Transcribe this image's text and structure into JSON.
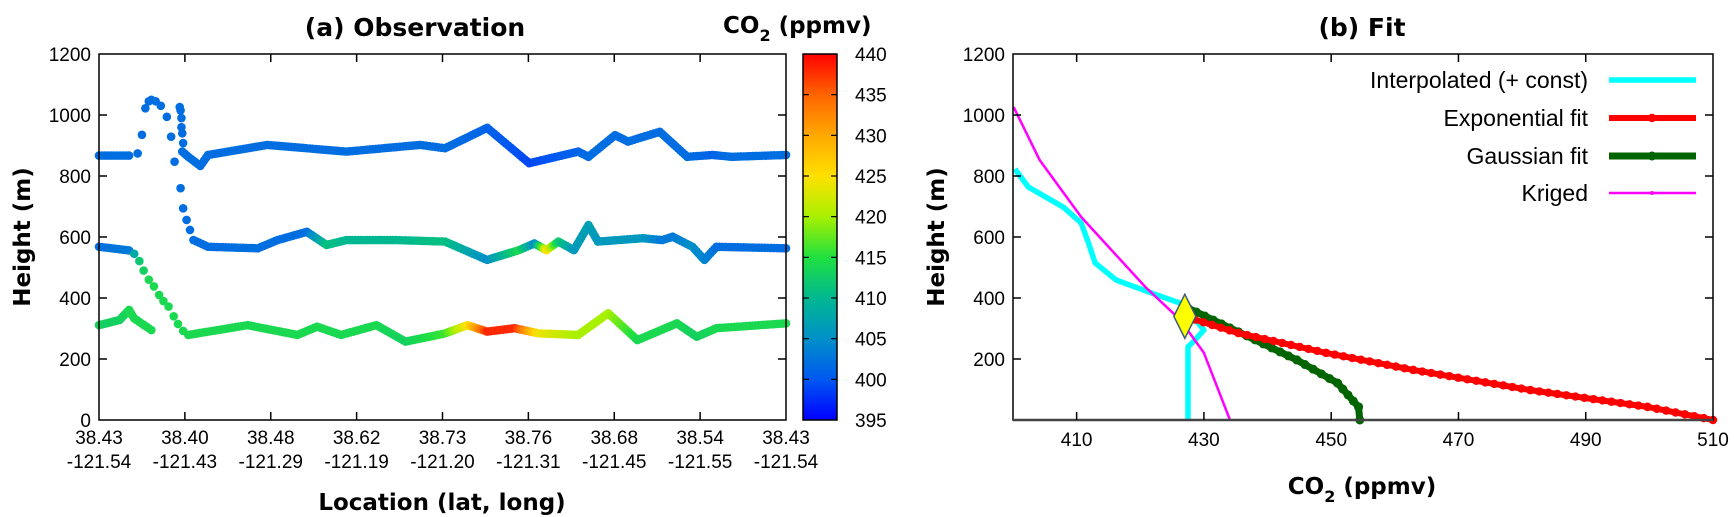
{
  "chart_data": [
    {
      "type": "scatter",
      "title": "(a) Observation",
      "xlabel": "Location (lat, long)",
      "ylabel": "Height (m)",
      "ylim": [
        0,
        1200
      ],
      "yticks": [
        0,
        200,
        400,
        600,
        800,
        1000,
        1200
      ],
      "xlim": [
        0,
        8
      ],
      "xtick_labels": [
        {
          "lat": "38.43",
          "long": "-121.54"
        },
        {
          "lat": "38.40",
          "long": "-121.43"
        },
        {
          "lat": "38.48",
          "long": "-121.29"
        },
        {
          "lat": "38.62",
          "long": "-121.19"
        },
        {
          "lat": "38.73",
          "long": "-121.20"
        },
        {
          "lat": "38.76",
          "long": "-121.31"
        },
        {
          "lat": "38.68",
          "long": "-121.45"
        },
        {
          "lat": "38.54",
          "long": "-121.55"
        },
        {
          "lat": "38.43",
          "long": "-121.54"
        }
      ],
      "colorbar": {
        "label": {
          "base": "CO",
          "sub": "2",
          "rest": " (ppmv)"
        },
        "range": [
          395,
          440
        ],
        "ticks": [
          440,
          435,
          430,
          425,
          420,
          415,
          410,
          405,
          400,
          395
        ],
        "colormap": [
          [
            395,
            "#0000ff"
          ],
          [
            400,
            "#0058f0"
          ],
          [
            405,
            "#0090c8"
          ],
          [
            410,
            "#00b890"
          ],
          [
            415,
            "#20e040"
          ],
          [
            420,
            "#a8f000"
          ],
          [
            425,
            "#ffe000"
          ],
          [
            430,
            "#ffa800"
          ],
          [
            435,
            "#ff6400"
          ],
          [
            440,
            "#ff0000"
          ]
        ]
      },
      "point_fields": [
        "x_index",
        "height_m",
        "co2_ppmv"
      ],
      "tracks": [
        {
          "name": "upper-start",
          "mode": "path",
          "points": [
            [
              0,
              867,
              402
            ],
            [
              0.35,
              867,
              402
            ]
          ]
        },
        {
          "name": "climb-dots",
          "mode": "points",
          "points": [
            [
              0.45,
              874,
              402
            ],
            [
              0.5,
              935,
              402
            ],
            [
              0.54,
              1022,
              402
            ],
            [
              0.58,
              1045,
              402
            ],
            [
              0.61,
              1050,
              402
            ],
            [
              0.66,
              1045,
              402
            ],
            [
              0.72,
              1030,
              402
            ],
            [
              0.79,
              994,
              402
            ],
            [
              0.84,
              929,
              402
            ],
            [
              0.88,
              847,
              402
            ]
          ]
        },
        {
          "name": "descent-dots",
          "mode": "points",
          "points": [
            [
              0.94,
              1026,
              402
            ],
            [
              0.95,
              1015,
              402
            ],
            [
              0.96,
              990,
              402
            ],
            [
              0.96,
              960,
              402
            ],
            [
              0.97,
              940,
              402
            ],
            [
              0.98,
              908,
              402
            ],
            [
              0.95,
              760,
              402
            ],
            [
              0.98,
              694,
              402
            ],
            [
              1.02,
              656,
              402
            ],
            [
              1.06,
              623,
              402
            ]
          ]
        },
        {
          "name": "upper-main",
          "mode": "path",
          "points": [
            [
              0.97,
              880,
              402
            ],
            [
              1.04,
              863,
              402
            ],
            [
              1.18,
              833,
              402
            ],
            [
              1.27,
              869,
              402
            ],
            [
              1.96,
              902,
              402
            ],
            [
              2.88,
              880,
              402
            ],
            [
              3.74,
              902,
              402
            ],
            [
              4.03,
              891,
              402
            ],
            [
              4.52,
              958,
              401
            ],
            [
              5.01,
              842,
              399
            ],
            [
              5.58,
              880,
              401
            ],
            [
              5.7,
              863,
              402
            ],
            [
              6.01,
              934,
              402
            ],
            [
              6.16,
              913,
              402
            ],
            [
              6.53,
              945,
              402
            ],
            [
              6.85,
              863,
              402
            ],
            [
              7.14,
              869,
              401
            ],
            [
              7.37,
              863,
              402
            ],
            [
              8,
              869,
              402
            ]
          ]
        },
        {
          "name": "middle-start",
          "mode": "path",
          "points": [
            [
              0,
              568,
              402
            ],
            [
              0.35,
              556,
              403
            ]
          ]
        },
        {
          "name": "middle-descent-dots",
          "mode": "points",
          "points": [
            [
              0.41,
              545,
              408
            ],
            [
              0.47,
              521,
              412
            ],
            [
              0.52,
              490,
              413
            ],
            [
              0.58,
              460,
              414
            ],
            [
              0.64,
              438,
              414
            ],
            [
              0.7,
              410,
              414
            ],
            [
              0.75,
              390,
              414
            ],
            [
              0.81,
              372,
              414
            ],
            [
              0.87,
              340,
              414
            ],
            [
              0.92,
              315,
              414
            ],
            [
              0.98,
              292,
              414
            ]
          ]
        },
        {
          "name": "middle-main",
          "mode": "path",
          "points": [
            [
              1.1,
              590,
              402
            ],
            [
              1.27,
              568,
              402
            ],
            [
              1.85,
              563,
              402
            ],
            [
              2.08,
              590,
              402
            ],
            [
              2.42,
              617,
              402
            ],
            [
              2.65,
              574,
              411
            ],
            [
              2.88,
              590,
              410
            ],
            [
              3.46,
              590,
              410
            ],
            [
              4.03,
              585,
              411
            ],
            [
              4.52,
              525,
              405
            ],
            [
              4.89,
              557,
              414
            ],
            [
              5.07,
              579,
              405
            ],
            [
              5.21,
              557,
              425
            ],
            [
              5.35,
              585,
              412
            ],
            [
              5.53,
              557,
              406
            ],
            [
              5.7,
              639,
              407
            ],
            [
              5.81,
              585,
              406
            ],
            [
              6.33,
              596,
              406
            ],
            [
              6.56,
              590,
              403
            ],
            [
              6.68,
              601,
              403
            ],
            [
              6.91,
              568,
              405
            ],
            [
              7.05,
              525,
              404
            ],
            [
              7.19,
              568,
              402
            ],
            [
              8,
              563,
              402
            ]
          ]
        },
        {
          "name": "lower-start",
          "mode": "path",
          "points": [
            [
              0,
              311,
              413
            ],
            [
              0.24,
              328,
              413
            ],
            [
              0.35,
              361,
              414
            ],
            [
              0.41,
              333,
              414
            ],
            [
              0.61,
              295,
              414
            ]
          ]
        },
        {
          "name": "lower-main",
          "mode": "path",
          "points": [
            [
              1.04,
              279,
              414
            ],
            [
              1.73,
              311,
              414
            ],
            [
              2.31,
              279,
              414
            ],
            [
              2.54,
              306,
              414
            ],
            [
              2.82,
              279,
              414
            ],
            [
              3.23,
              311,
              414
            ],
            [
              3.57,
              257,
              413
            ],
            [
              4.03,
              284,
              416
            ],
            [
              4.29,
              311,
              425
            ],
            [
              4.52,
              290,
              438
            ],
            [
              4.84,
              301,
              438
            ],
            [
              5.12,
              284,
              424
            ],
            [
              5.58,
              279,
              420
            ],
            [
              5.93,
              350,
              420
            ],
            [
              6.27,
              262,
              414
            ],
            [
              6.73,
              317,
              414
            ],
            [
              6.96,
              273,
              413
            ],
            [
              7.19,
              301,
              414
            ],
            [
              8,
              317,
              414
            ]
          ]
        }
      ]
    },
    {
      "type": "line",
      "title": "(b) Fit",
      "xlabel": {
        "base": "CO",
        "sub": "2",
        "rest": " (ppmv)"
      },
      "ylabel": "Height (m)",
      "xlim": [
        400,
        510
      ],
      "ylim": [
        0,
        1200
      ],
      "xticks": [
        410,
        430,
        450,
        470,
        490,
        510
      ],
      "yticks": [
        200,
        400,
        600,
        800,
        1000,
        1200
      ],
      "legend_position": "top-right",
      "series": [
        {
          "name": "Interpolated (+ const)",
          "color": "#00ffff",
          "points": [
            [
              400.3,
              823
            ],
            [
              402.4,
              764
            ],
            [
              407.9,
              698
            ],
            [
              410.7,
              646
            ],
            [
              411.7,
              590
            ],
            [
              412.9,
              515
            ],
            [
              416.2,
              459
            ],
            [
              422.6,
              410
            ],
            [
              426.3,
              383
            ],
            [
              428.7,
              328
            ],
            [
              430,
              295
            ],
            [
              428.5,
              260
            ],
            [
              427.5,
              240
            ],
            [
              427.5,
              0
            ]
          ]
        },
        {
          "name": "Exponential fit",
          "color": "#ff0000",
          "points": [
            [
              427.2,
              338
            ],
            [
              435.4,
              285
            ],
            [
              449.2,
              220
            ],
            [
              462.9,
              164
            ],
            [
              481.3,
              98
            ],
            [
              499.7,
              43
            ],
            [
              510,
              0
            ]
          ]
        },
        {
          "name": "Gaussian fit",
          "color": "#006400",
          "points": [
            [
              427.5,
              367
            ],
            [
              435.4,
              289
            ],
            [
              444.6,
              197
            ],
            [
              451,
              121
            ],
            [
              454.3,
              43
            ],
            [
              454.5,
              0
            ]
          ]
        },
        {
          "name": "Kriged",
          "color": "#ff00ff",
          "points": [
            [
              400.1,
              1026
            ],
            [
              404.2,
              852
            ],
            [
              410.7,
              666
            ],
            [
              420.8,
              436
            ],
            [
              426.3,
              328
            ],
            [
              430,
              220
            ],
            [
              434.1,
              0
            ]
          ]
        }
      ],
      "marker": {
        "shape": "diamond",
        "color": "#ffff00",
        "co2": 427,
        "height": 340
      }
    }
  ]
}
